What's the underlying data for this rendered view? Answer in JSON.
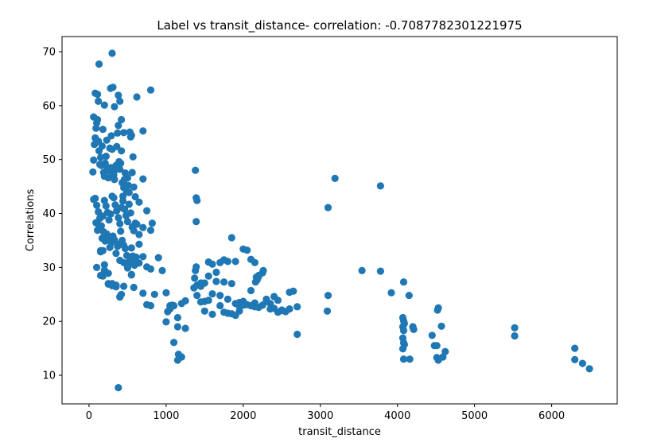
{
  "chart_data": {
    "type": "scatter",
    "title": "Label vs transit_distance- correlation: -0.7087782301221975",
    "xlabel": "transit_distance",
    "ylabel": "Correlations",
    "xlim": [
      -350,
      6850
    ],
    "ylim": [
      4.7,
      72.8
    ],
    "xticks": [
      0,
      1000,
      2000,
      3000,
      4000,
      5000,
      6000
    ],
    "yticks": [
      10,
      20,
      30,
      40,
      50,
      60,
      70
    ],
    "grid": false,
    "legend": "none",
    "marker_color": "#1f77b4",
    "x": [
      130,
      300,
      80,
      110,
      60,
      120,
      200,
      280,
      310,
      330,
      380,
      400,
      420,
      450,
      620,
      800,
      700,
      50,
      60,
      70,
      80,
      90,
      100,
      110,
      120,
      130,
      140,
      150,
      160,
      170,
      180,
      190,
      200,
      210,
      220,
      230,
      240,
      250,
      260,
      270,
      280,
      290,
      300,
      310,
      320,
      330,
      340,
      350,
      360,
      370,
      380,
      390,
      400,
      410,
      420,
      430,
      440,
      450,
      460,
      470,
      480,
      490,
      500,
      510,
      520,
      530,
      540,
      550,
      560,
      570,
      580,
      600,
      620,
      650,
      700,
      750,
      800,
      820,
      60,
      80,
      100,
      120,
      140,
      160,
      180,
      200,
      220,
      240,
      260,
      280,
      300,
      320,
      340,
      360,
      380,
      400,
      420,
      440,
      460,
      480,
      500,
      520,
      540,
      560,
      580,
      600,
      650,
      700,
      90,
      110,
      130,
      150,
      170,
      190,
      210,
      230,
      250,
      270,
      290,
      310,
      330,
      350,
      370,
      390,
      410,
      430,
      450,
      470,
      490,
      510,
      530,
      550,
      570,
      590,
      610,
      100,
      150,
      200,
      250,
      300,
      350,
      400,
      450,
      500,
      550,
      600,
      650,
      700,
      750,
      800,
      150,
      180,
      200,
      250,
      300,
      350,
      400,
      450,
      500,
      550,
      600,
      650,
      700,
      750,
      800,
      850,
      900,
      950,
      1000,
      1050,
      1100,
      1150,
      1200,
      1250,
      180,
      200,
      250,
      300,
      350,
      400,
      420,
      580,
      1000,
      1100,
      1150,
      1200,
      1250,
      1150,
      1160,
      1020,
      1050,
      1080,
      380,
      1380,
      1390,
      1400,
      1390,
      1390,
      1380,
      1370,
      1360,
      1400,
      1450,
      1500,
      1550,
      1600,
      1650,
      1700,
      1750,
      1800,
      1850,
      1900,
      1950,
      2000,
      2050,
      2100,
      2150,
      2160,
      2170,
      2180,
      2200,
      2250,
      2260,
      2300,
      2350,
      2400,
      2450,
      2500,
      2550,
      2600,
      2650,
      2700,
      2200,
      2100,
      2150,
      2000,
      1900,
      1800,
      1700,
      1600,
      1500,
      1450,
      1550,
      1650,
      1750,
      1850,
      1950,
      2050,
      2150,
      2250,
      2350,
      2450,
      1700,
      1800,
      1900,
      2000,
      2100,
      2200,
      2300,
      2400,
      2500,
      2600,
      2700,
      1500,
      1600,
      1400,
      1450,
      1550,
      1750,
      1850,
      1950,
      3100,
      3190,
      3780,
      3100,
      3090,
      3540,
      3780,
      3920,
      4080,
      4150,
      4070,
      4080,
      4090,
      4070,
      4080,
      4070,
      4080,
      4090,
      4070,
      4080,
      4200,
      4210,
      4200,
      4450,
      4480,
      4530,
      4510,
      4520,
      4570,
      4590,
      4620,
      4510,
      4530,
      4160,
      5520,
      5520,
      6300,
      6400,
      6490,
      6300
    ],
    "y": [
      67.7,
      69.7,
      62.3,
      62.1,
      57.9,
      60.8,
      60.1,
      63.2,
      63.4,
      59.8,
      61.9,
      60.8,
      57.4,
      55.0,
      61.6,
      62.9,
      55.3,
      47.7,
      49.9,
      52.8,
      54.0,
      55.8,
      56.8,
      57.4,
      53.4,
      51.6,
      49.1,
      50.4,
      48.9,
      52.5,
      55.6,
      47.6,
      46.9,
      49.3,
      50.6,
      53.6,
      48.3,
      46.6,
      47.9,
      52.1,
      48.5,
      54.4,
      51.9,
      47.6,
      47.2,
      46.3,
      48.1,
      48.9,
      52.4,
      54.9,
      56.3,
      49.6,
      48.2,
      49.3,
      51.6,
      45.7,
      43.2,
      44.8,
      46.3,
      47.5,
      44.9,
      44.0,
      46.6,
      45.2,
      43.9,
      55.1,
      54.2,
      54.5,
      47.6,
      50.5,
      44.9,
      43.1,
      38.0,
      42.1,
      46.4,
      40.5,
      36.9,
      38.2,
      42.6,
      42.8,
      41.5,
      40.3,
      39.1,
      37.7,
      39.5,
      42.4,
      41.4,
      40.2,
      38.8,
      39.9,
      43.2,
      42.9,
      41.6,
      40.5,
      39.2,
      38.1,
      41.1,
      42.3,
      40.8,
      39.6,
      38.5,
      41.7,
      40.1,
      37.5,
      36.8,
      38.2,
      36.1,
      37.4,
      38.3,
      36.9,
      37.8,
      33.1,
      35.4,
      36.6,
      34.9,
      36.2,
      35.5,
      33.7,
      34.6,
      35.8,
      35.1,
      32.6,
      33.9,
      34.3,
      36.7,
      35.0,
      34.1,
      33.5,
      32.2,
      30.8,
      31.4,
      33.6,
      32.1,
      30.4,
      31.9,
      30.0,
      28.5,
      29.3,
      27.0,
      26.8,
      26.4,
      31.3,
      30.9,
      29.9,
      28.6,
      31.5,
      30.8,
      25.2,
      23.1,
      29.7,
      32.9,
      33.1,
      29.5,
      28.9,
      26.6,
      26.7,
      24.6,
      26.5,
      30.2,
      28.7,
      31.6,
      34.3,
      32.0,
      30.1,
      22.9,
      25.0,
      31.8,
      29.4,
      25.3,
      22.3,
      22.9,
      20.7,
      23.3,
      23.8,
      28.4,
      30.5,
      26.9,
      27.0,
      26.6,
      24.5,
      25.0,
      26.3,
      19.9,
      16.1,
      12.8,
      13.4,
      18.7,
      19.0,
      13.9,
      21.8,
      22.9,
      23.0,
      7.7,
      48.0,
      42.9,
      42.4,
      38.5,
      30.1,
      29.4,
      28.0,
      26.2,
      24.8,
      26.5,
      27.1,
      31.0,
      30.6,
      29.1,
      30.9,
      31.4,
      31.1,
      35.5,
      31.1,
      23.5,
      33.4,
      33.2,
      31.5,
      30.9,
      27.3,
      28.2,
      27.7,
      28.5,
      29.0,
      29.4,
      23.7,
      23.3,
      24.6,
      23.9,
      22.1,
      21.8,
      25.4,
      25.6,
      17.6,
      28.3,
      25.7,
      23.4,
      23.7,
      21.1,
      21.5,
      22.9,
      21.3,
      21.9,
      23.6,
      28.4,
      27.4,
      27.3,
      27.0,
      22.8,
      23.1,
      22.7,
      23.0,
      22.3,
      21.7,
      24.8,
      24.1,
      23.3,
      23.0,
      22.9,
      22.6,
      24.1,
      22.4,
      22.0,
      22.3,
      22.7,
      23.7,
      25.1,
      26.7,
      27.1,
      23.9,
      21.7,
      21.4,
      21.9,
      41.1,
      46.5,
      45.1,
      24.8,
      21.9,
      29.4,
      29.3,
      25.3,
      27.3,
      24.8,
      20.7,
      20.1,
      19.6,
      19.0,
      18.3,
      16.9,
      16.0,
      15.7,
      14.9,
      13.0,
      19.0,
      18.5,
      18.9,
      17.4,
      15.5,
      22.5,
      15.5,
      22.1,
      19.1,
      13.4,
      14.4,
      13.3,
      12.8,
      13.0,
      18.8,
      17.3,
      15.0,
      12.2,
      11.2,
      12.9
    ]
  }
}
